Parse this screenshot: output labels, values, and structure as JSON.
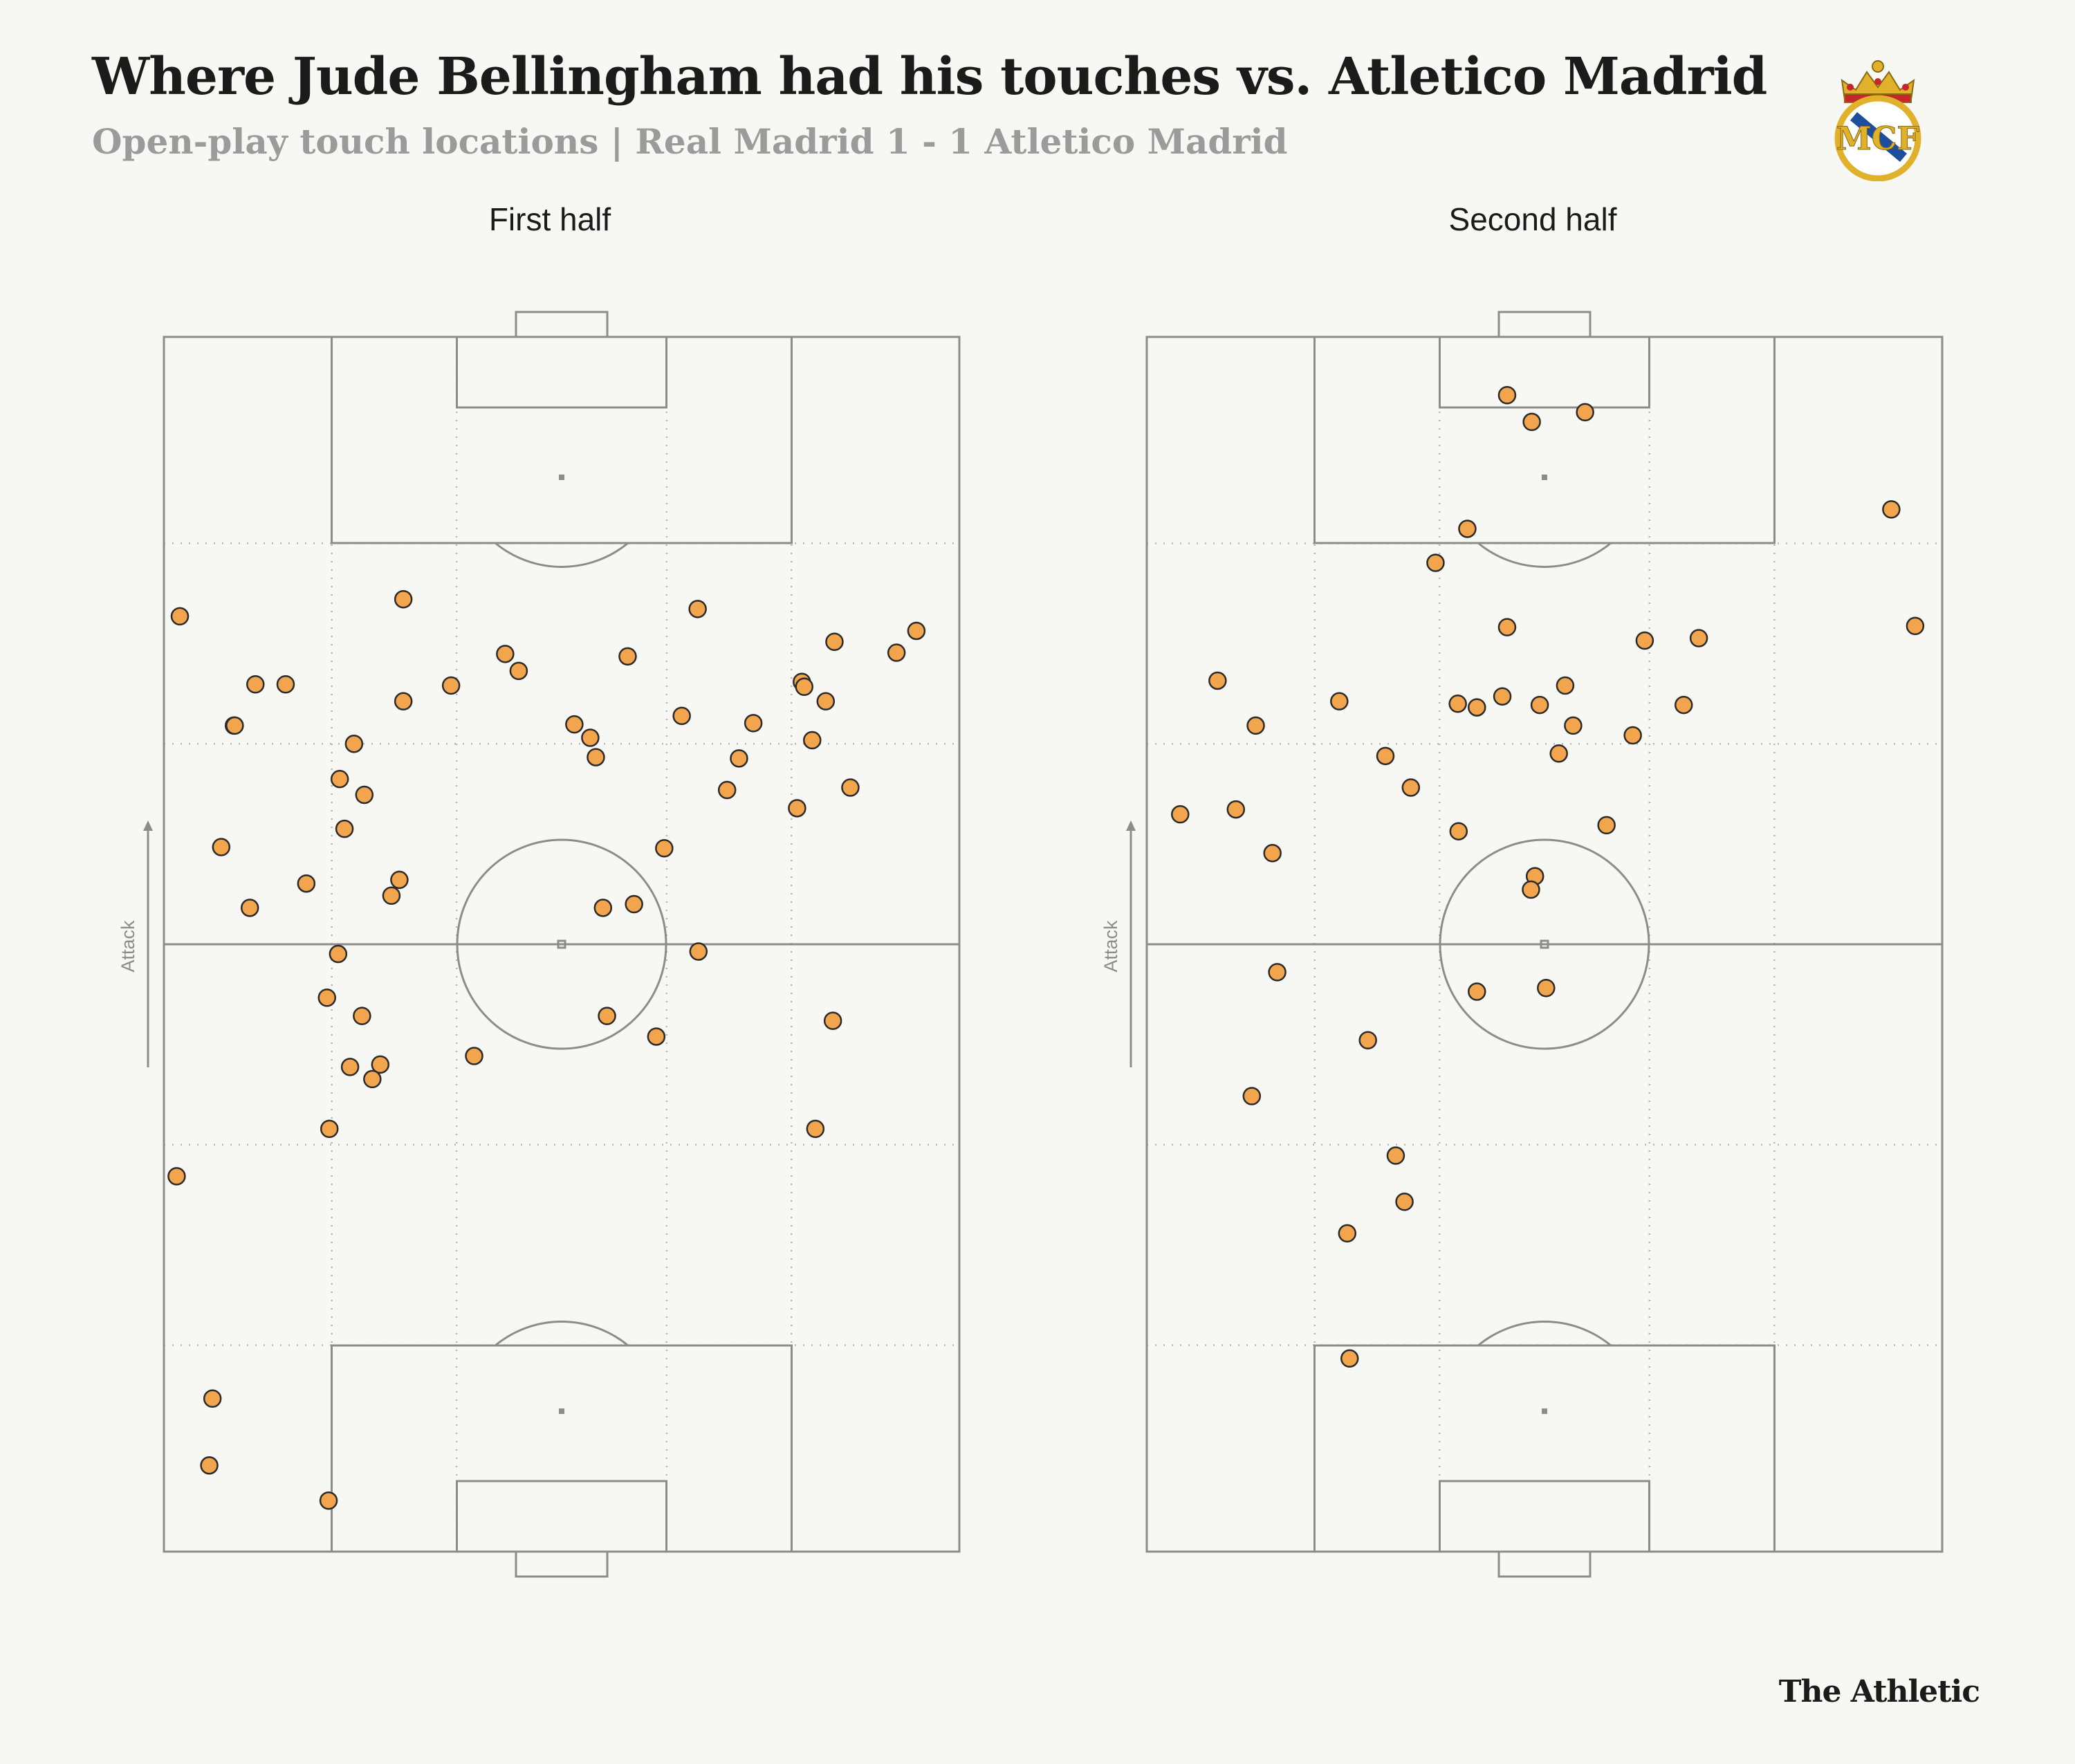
{
  "header": {
    "title": "Where Jude Bellingham had his touches vs. Atletico Madrid",
    "subtitle": "Open-play touch locations |  Real Madrid 1 - 1 Atletico Madrid"
  },
  "crest": {
    "icon": "real-madrid-crest",
    "text": "MCF"
  },
  "footer": {
    "brand": "The Athletic"
  },
  "colors": {
    "background": "#f7f7f4",
    "pitch_lines": "#8c8c8c",
    "zone_lines": "#b5b5b5",
    "touch_fill": "#f2a54c",
    "touch_stroke": "#2b2b2b"
  },
  "chart_data": [
    {
      "type": "scatter",
      "title": "First half",
      "direction_label": "Attack",
      "coordinate_system": "x = 0-100 across pitch width (left to right), y = 0-100 along pitch length (own goal to opponent goal)",
      "xlim": [
        0,
        100
      ],
      "ylim": [
        0,
        100
      ],
      "points": [
        {
          "x": 2.0,
          "y": 77.0
        },
        {
          "x": 11.5,
          "y": 71.4
        },
        {
          "x": 15.3,
          "y": 71.4
        },
        {
          "x": 8.8,
          "y": 68.0
        },
        {
          "x": 8.9,
          "y": 68.0
        },
        {
          "x": 30.1,
          "y": 78.4
        },
        {
          "x": 30.1,
          "y": 70.0
        },
        {
          "x": 36.1,
          "y": 71.3
        },
        {
          "x": 42.9,
          "y": 73.9
        },
        {
          "x": 44.6,
          "y": 72.5
        },
        {
          "x": 58.3,
          "y": 73.7
        },
        {
          "x": 67.1,
          "y": 77.6
        },
        {
          "x": 84.3,
          "y": 74.9
        },
        {
          "x": 92.1,
          "y": 74.0
        },
        {
          "x": 94.6,
          "y": 75.8
        },
        {
          "x": 80.2,
          "y": 71.6
        },
        {
          "x": 80.5,
          "y": 71.2
        },
        {
          "x": 83.2,
          "y": 70.0
        },
        {
          "x": 65.1,
          "y": 68.8
        },
        {
          "x": 74.1,
          "y": 68.2
        },
        {
          "x": 51.6,
          "y": 68.1
        },
        {
          "x": 53.6,
          "y": 67.0
        },
        {
          "x": 54.3,
          "y": 65.4
        },
        {
          "x": 81.5,
          "y": 66.8
        },
        {
          "x": 72.3,
          "y": 65.3
        },
        {
          "x": 86.3,
          "y": 62.9
        },
        {
          "x": 70.8,
          "y": 62.7
        },
        {
          "x": 79.6,
          "y": 61.2
        },
        {
          "x": 23.9,
          "y": 66.5
        },
        {
          "x": 22.1,
          "y": 63.6
        },
        {
          "x": 25.2,
          "y": 62.3
        },
        {
          "x": 22.7,
          "y": 59.5
        },
        {
          "x": 7.2,
          "y": 58.0
        },
        {
          "x": 62.9,
          "y": 57.9
        },
        {
          "x": 17.9,
          "y": 55.0
        },
        {
          "x": 29.6,
          "y": 55.3
        },
        {
          "x": 28.6,
          "y": 54.0
        },
        {
          "x": 10.8,
          "y": 53.0
        },
        {
          "x": 55.2,
          "y": 53.0
        },
        {
          "x": 59.1,
          "y": 53.3
        },
        {
          "x": 21.9,
          "y": 49.2
        },
        {
          "x": 67.2,
          "y": 49.4
        },
        {
          "x": 20.5,
          "y": 45.6
        },
        {
          "x": 24.9,
          "y": 44.1
        },
        {
          "x": 55.7,
          "y": 44.1
        },
        {
          "x": 61.9,
          "y": 42.4
        },
        {
          "x": 84.1,
          "y": 43.7
        },
        {
          "x": 39.0,
          "y": 40.8
        },
        {
          "x": 23.4,
          "y": 39.9
        },
        {
          "x": 27.2,
          "y": 40.1
        },
        {
          "x": 26.2,
          "y": 38.9
        },
        {
          "x": 20.8,
          "y": 34.8
        },
        {
          "x": 81.9,
          "y": 34.8
        },
        {
          "x": 1.6,
          "y": 30.9
        },
        {
          "x": 6.1,
          "y": 12.6
        },
        {
          "x": 5.7,
          "y": 7.1
        },
        {
          "x": 20.7,
          "y": 4.2
        }
      ]
    },
    {
      "type": "scatter",
      "title": "Second half",
      "direction_label": "Attack",
      "coordinate_system": "x = 0-100 across pitch width (left to right), y = 0-100 along pitch length (own goal to opponent goal)",
      "xlim": [
        0,
        100
      ],
      "ylim": [
        0,
        100
      ],
      "points": [
        {
          "x": 45.3,
          "y": 95.2
        },
        {
          "x": 48.4,
          "y": 93.0
        },
        {
          "x": 55.1,
          "y": 93.8
        },
        {
          "x": 93.6,
          "y": 85.8
        },
        {
          "x": 40.3,
          "y": 84.2
        },
        {
          "x": 36.3,
          "y": 81.4
        },
        {
          "x": 45.3,
          "y": 76.1
        },
        {
          "x": 62.6,
          "y": 75.0
        },
        {
          "x": 69.4,
          "y": 75.2
        },
        {
          "x": 96.6,
          "y": 76.2
        },
        {
          "x": 8.9,
          "y": 71.7
        },
        {
          "x": 24.2,
          "y": 70.0
        },
        {
          "x": 39.1,
          "y": 69.8
        },
        {
          "x": 41.5,
          "y": 69.5
        },
        {
          "x": 44.7,
          "y": 70.4
        },
        {
          "x": 49.4,
          "y": 69.7
        },
        {
          "x": 52.6,
          "y": 71.3
        },
        {
          "x": 67.5,
          "y": 69.7
        },
        {
          "x": 13.7,
          "y": 68.0
        },
        {
          "x": 53.6,
          "y": 68.0
        },
        {
          "x": 61.1,
          "y": 67.2
        },
        {
          "x": 51.8,
          "y": 65.7
        },
        {
          "x": 30.0,
          "y": 65.5
        },
        {
          "x": 33.2,
          "y": 62.9
        },
        {
          "x": 4.2,
          "y": 60.7
        },
        {
          "x": 11.2,
          "y": 61.1
        },
        {
          "x": 57.8,
          "y": 59.8
        },
        {
          "x": 39.2,
          "y": 59.3
        },
        {
          "x": 15.8,
          "y": 57.5
        },
        {
          "x": 48.8,
          "y": 55.6
        },
        {
          "x": 48.3,
          "y": 54.5
        },
        {
          "x": 16.4,
          "y": 47.7
        },
        {
          "x": 41.5,
          "y": 46.1
        },
        {
          "x": 50.2,
          "y": 46.4
        },
        {
          "x": 27.8,
          "y": 42.1
        },
        {
          "x": 13.2,
          "y": 37.5
        },
        {
          "x": 31.3,
          "y": 32.6
        },
        {
          "x": 32.4,
          "y": 28.8
        },
        {
          "x": 25.2,
          "y": 26.2
        },
        {
          "x": 25.5,
          "y": 15.9
        }
      ]
    }
  ]
}
